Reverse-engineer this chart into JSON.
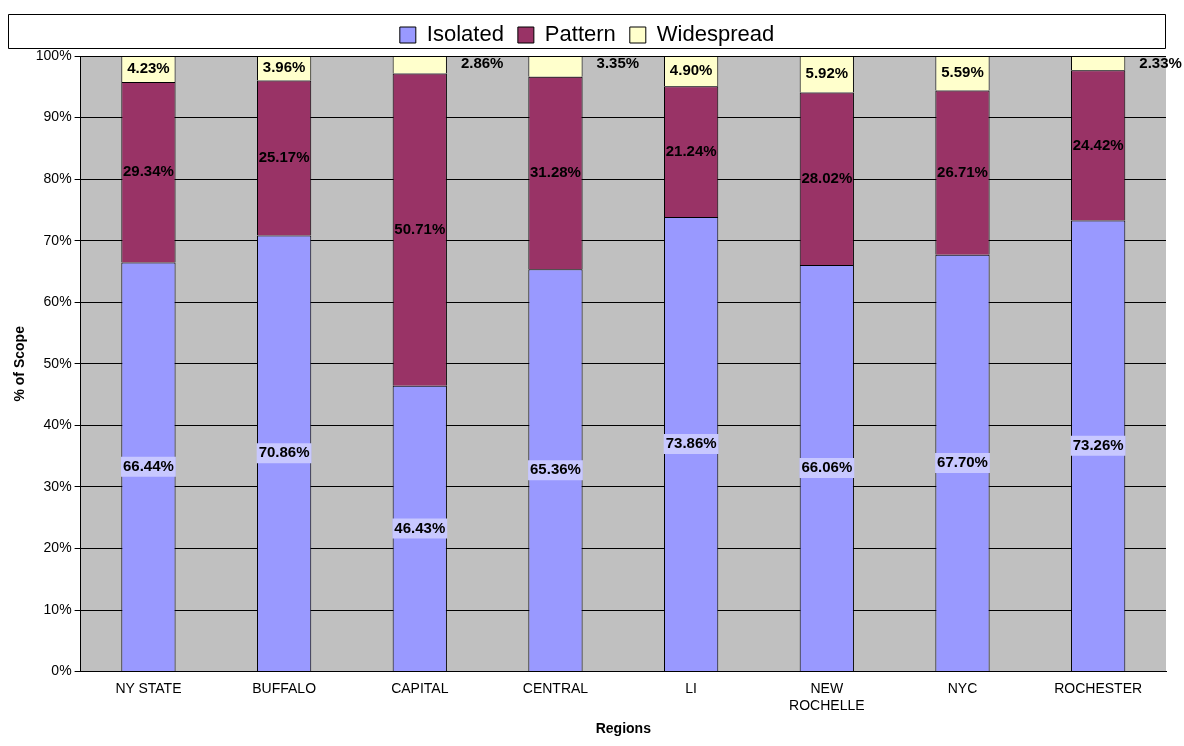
{
  "chart_data": {
    "type": "bar",
    "stacked": true,
    "xlabel": "Regions",
    "ylabel": "% of Scope",
    "categories": [
      "NY STATE",
      "BUFFALO",
      "CAPITAL",
      "CENTRAL",
      "LI",
      "NEW ROCHELLE",
      "NYC",
      "ROCHESTER"
    ],
    "series": [
      {
        "name": "Isolated",
        "color": "#9999ff",
        "values": [
          66.44,
          70.86,
          46.43,
          65.36,
          73.86,
          66.06,
          67.7,
          73.26
        ]
      },
      {
        "name": "Pattern",
        "color": "#993366",
        "values": [
          29.34,
          25.17,
          50.71,
          31.28,
          21.24,
          28.02,
          26.71,
          24.42
        ]
      },
      {
        "name": "Widespread",
        "color": "#ffffcc",
        "values": [
          4.23,
          3.96,
          2.86,
          3.35,
          4.9,
          5.92,
          5.59,
          2.33
        ]
      }
    ],
    "value_labels": [
      [
        "66.44%",
        "70.86%",
        "46.43%",
        "65.36%",
        "73.86%",
        "66.06%",
        "67.70%",
        "73.26%"
      ],
      [
        "29.34%",
        "25.17%",
        "50.71%",
        "31.28%",
        "21.24%",
        "28.02%",
        "26.71%",
        "24.42%"
      ],
      [
        "4.23%",
        "3.96%",
        "2.86%",
        "3.35%",
        "4.90%",
        "5.92%",
        "5.59%",
        "2.33%"
      ]
    ],
    "ylim": [
      0,
      100
    ],
    "yticks": [
      {
        "value": 0,
        "label": "0%"
      },
      {
        "value": 10,
        "label": "10%"
      },
      {
        "value": 20,
        "label": "20%"
      },
      {
        "value": 30,
        "label": "30%"
      },
      {
        "value": 40,
        "label": "40%"
      },
      {
        "value": 50,
        "label": "50%"
      },
      {
        "value": 60,
        "label": "60%"
      },
      {
        "value": 70,
        "label": "70%"
      },
      {
        "value": 80,
        "label": "80%"
      },
      {
        "value": 90,
        "label": "90%"
      },
      {
        "value": 100,
        "label": "100%"
      }
    ],
    "grid": "y",
    "legend": "top"
  }
}
